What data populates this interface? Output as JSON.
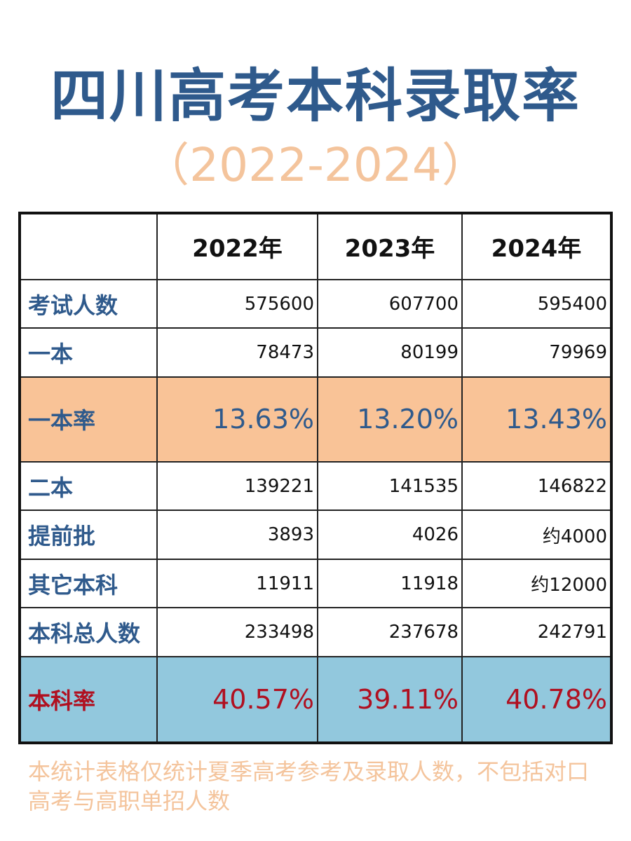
{
  "title": "四川高考本科录取率",
  "subtitle": "（2022-2024）",
  "table": {
    "columns": [
      "",
      "2022年",
      "2023年",
      "2024年"
    ],
    "rows": [
      {
        "label": "考试人数",
        "values": [
          "575600",
          "607700",
          "595400"
        ],
        "style": "normal"
      },
      {
        "label": "一本",
        "values": [
          "78473",
          "80199",
          "79969"
        ],
        "style": "normal"
      },
      {
        "label": "一本率",
        "values": [
          "13.63%",
          "13.20%",
          "13.43%"
        ],
        "style": "orange"
      },
      {
        "label": "二本",
        "values": [
          "139221",
          "141535",
          "146822"
        ],
        "style": "normal"
      },
      {
        "label": "提前批",
        "values": [
          "3893",
          "4026",
          "约4000"
        ],
        "style": "normal"
      },
      {
        "label": "其它本科",
        "values": [
          "11911",
          "11918",
          "约12000"
        ],
        "style": "normal"
      },
      {
        "label": "本科总人数",
        "values": [
          "233498",
          "237678",
          "242791"
        ],
        "style": "normal"
      },
      {
        "label": "本科率",
        "values": [
          "40.57%",
          "39.11%",
          "40.78%"
        ],
        "style": "blue"
      }
    ]
  },
  "footnote": "本统计表格仅统计夏季高考参考及录取人数，不包括对口高考与高职单招人数",
  "colors": {
    "title": "#2f5a8c",
    "subtitle": "#f4c49c",
    "highlight_orange": "#f9c397",
    "highlight_blue": "#92c8dd",
    "accent_red": "#b01020"
  }
}
